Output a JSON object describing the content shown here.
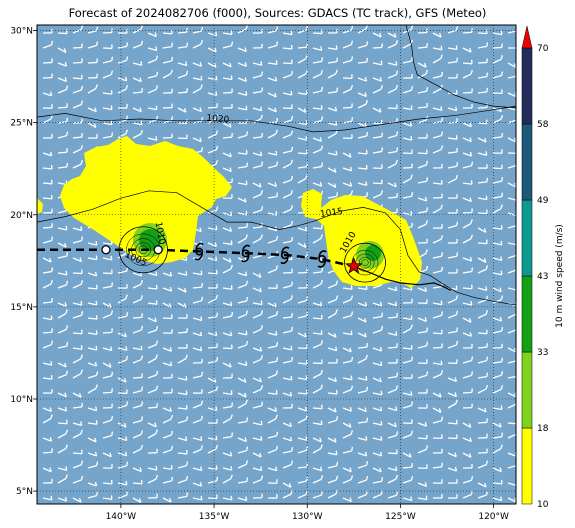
{
  "title": "Forecast of 2024082706 (f000), Sources: GDACS (TC track), GFS (Meteo)",
  "map": {
    "lon_range": [
      -144.5,
      -118.8
    ],
    "lat_range": [
      4.3,
      30.3
    ],
    "lon_ticks": [
      {
        "value": -140,
        "label": "140°W"
      },
      {
        "value": -135,
        "label": "135°W"
      },
      {
        "value": -130,
        "label": "130°W"
      },
      {
        "value": -125,
        "label": "125°W"
      },
      {
        "value": -120,
        "label": "120°W"
      }
    ],
    "lat_ticks": [
      {
        "value": 30,
        "label": "30°N"
      },
      {
        "value": 25,
        "label": "25°N"
      },
      {
        "value": 20,
        "label": "20°N"
      },
      {
        "value": 15,
        "label": "15°N"
      },
      {
        "value": 10,
        "label": "10°N"
      },
      {
        "value": 5,
        "label": "5°N"
      }
    ],
    "ocean_color": "#76a5cb",
    "wind_barb_color": "#ffffff"
  },
  "isobars": [
    {
      "level": "1020",
      "label_lon": -134.8,
      "label_lat": 25.2,
      "points": [
        [
          -144.5,
          25.3
        ],
        [
          -143,
          25.5
        ],
        [
          -141,
          25.1
        ],
        [
          -139,
          25.2
        ],
        [
          -137,
          25.1
        ],
        [
          -135,
          25.1
        ],
        [
          -133,
          25.1
        ],
        [
          -131,
          24.8
        ],
        [
          -129.7,
          24.5
        ],
        [
          -128,
          24.6
        ],
        [
          -126,
          24.9
        ],
        [
          -124,
          25.2
        ],
        [
          -122,
          25.4
        ],
        [
          -120,
          25.7
        ],
        [
          -118.8,
          25.9
        ]
      ]
    },
    {
      "level": "1015",
      "label_lon": -128.7,
      "label_lat": 20.1,
      "points": [
        [
          -144.5,
          19.6
        ],
        [
          -143,
          19.9
        ],
        [
          -141.5,
          20.3
        ],
        [
          -140,
          20.9
        ],
        [
          -138.5,
          21.3
        ],
        [
          -137,
          21.2
        ],
        [
          -135.5,
          20.3
        ],
        [
          -134.3,
          19.6
        ],
        [
          -133,
          19.6
        ],
        [
          -131.5,
          19.2
        ],
        [
          -130.5,
          19.4
        ],
        [
          -129.5,
          19.7
        ],
        [
          -128.2,
          20.2
        ],
        [
          -127,
          20.4
        ],
        [
          -125.8,
          20.1
        ],
        [
          -125,
          19.2
        ],
        [
          -124.6,
          17.8
        ],
        [
          -124,
          16.9
        ],
        [
          -123.4,
          16.7
        ],
        [
          -122.8,
          16.3
        ],
        [
          -122,
          15.8
        ],
        [
          -121,
          15.5
        ],
        [
          -120,
          15.3
        ],
        [
          -118.8,
          15.1
        ]
      ]
    },
    {
      "level": "1020",
      "label_lon": null,
      "label_lat": null,
      "points": [
        [
          -124.7,
          30.3
        ],
        [
          -124.4,
          29.2
        ],
        [
          -124.3,
          28.3
        ],
        [
          -124.1,
          27.6
        ],
        [
          -123,
          27.0
        ],
        [
          -122.1,
          26.5
        ],
        [
          -121,
          26.1
        ],
        [
          -120,
          25.9
        ],
        [
          -118.8,
          25.8
        ]
      ]
    }
  ],
  "isobar_labels": [
    {
      "text": "1020",
      "lon": -134.8,
      "lat": 25.2,
      "rotate": 5
    },
    {
      "text": "1015",
      "lon": -128.7,
      "lat": 20.1,
      "rotate": -8
    },
    {
      "text": "1010",
      "lon": -137.9,
      "lat": 19.0,
      "rotate": 80
    },
    {
      "text": "1005",
      "lon": -139.2,
      "lat": 17.6,
      "rotate": 25
    },
    {
      "text": "1010",
      "lon": -127.8,
      "lat": 18.5,
      "rotate": -60
    }
  ],
  "storms": [
    {
      "name": "west",
      "lon": -138.8,
      "lat": 18.1,
      "outer_r": 1.3,
      "inner_r": 0.9
    },
    {
      "name": "east",
      "lon": -126.9,
      "lat": 17.4,
      "outer_r": 1.1,
      "inner_r": 0.7
    }
  ],
  "tc_track": {
    "dashed_points": [
      [
        -144.5,
        18.1
      ],
      [
        -141,
        18.1
      ],
      [
        -138,
        18.1
      ],
      [
        -135.5,
        18.0
      ],
      [
        -133,
        17.9
      ],
      [
        -131,
        17.8
      ],
      [
        -129.3,
        17.6
      ],
      [
        -127.5,
        17.2
      ]
    ],
    "solid_points": [
      [
        -127.5,
        17.2
      ],
      [
        -126.5,
        16.8
      ],
      [
        -125.8,
        16.5
      ],
      [
        -125,
        16.3
      ],
      [
        -124,
        16.2
      ],
      [
        -123.2,
        16.3
      ],
      [
        -122.7,
        16.1
      ],
      [
        -122.3,
        15.9
      ]
    ],
    "open_circles": [
      [
        -140.8,
        18.1
      ],
      [
        -138.0,
        18.1
      ]
    ],
    "tc_symbols": [
      [
        -135.8,
        18.0
      ],
      [
        -133.3,
        17.9
      ],
      [
        -131.2,
        17.8
      ],
      [
        -129.2,
        17.6
      ]
    ],
    "current_position": {
      "lon": -127.5,
      "lat": 17.2,
      "marker": "red-star"
    }
  },
  "colorbar": {
    "label": "10 m wind speed (m/s)",
    "levels": [
      {
        "value": "10",
        "color": "#ffff00"
      },
      {
        "value": "18",
        "color": "#7fd31f"
      },
      {
        "value": "33",
        "color": "#14a014"
      },
      {
        "value": "43",
        "color": "#0e9a90"
      },
      {
        "value": "49",
        "color": "#1b5b78"
      },
      {
        "value": "58",
        "color": "#222c5a"
      },
      {
        "value": "70",
        "color": "#ee0000"
      }
    ]
  }
}
